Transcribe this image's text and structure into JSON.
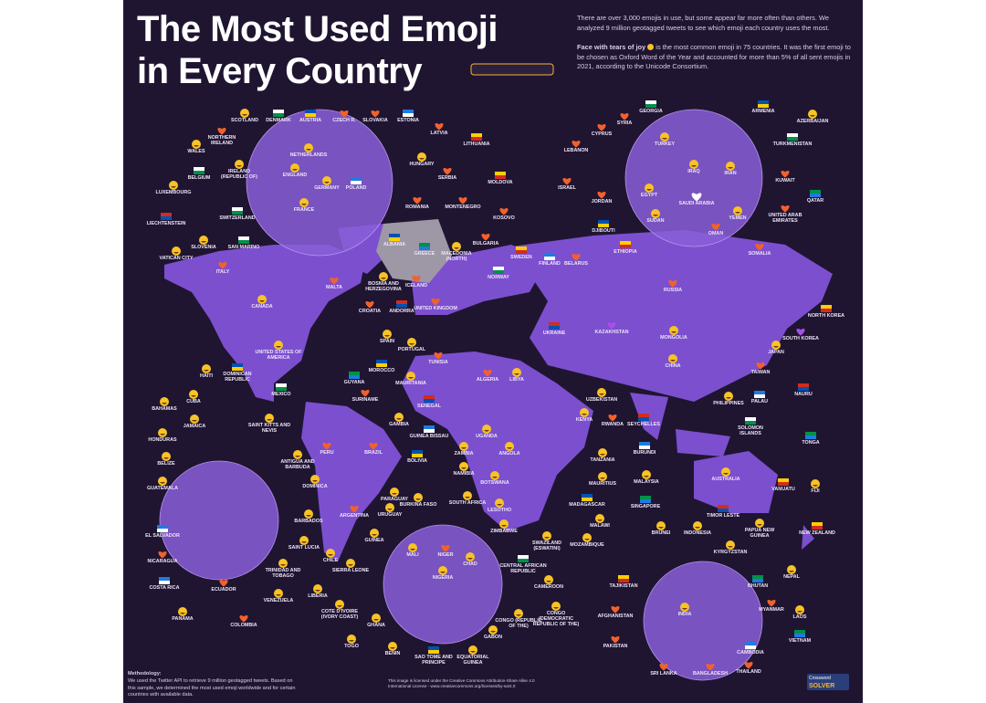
{
  "header": {
    "title_line1": "The Most Used Emoji",
    "title_line2": "in Every Country",
    "intro": "There are over 3,000 emojis in use, but some appear far more often than others. We analyzed 9 million geotagged tweets to see which emoji each country uses the most.",
    "highlight": "Face with tears of joy",
    "highlight_text": "is the most common emoji in 75 countries. It was the first emoji to be chosen as Oxford Word of the Year and accounted for more than 5% of all sent emojis in 2021, according to the Unicode Consortium."
  },
  "countries": [
    "SCOTLAND",
    "DENMARK",
    "AUSTRIA",
    "CZECH R.",
    "SLOVAKIA",
    "ESTONIA",
    "NORTHERN IRELAND",
    "LATVIA",
    "WALES",
    "NETHERLANDS",
    "LITHUANIA",
    "ENGLAND",
    "IRELAND (REPUBLIC OF)",
    "BELGIUM",
    "HUNGARY",
    "SERBIA",
    "MOLDOVA",
    "POLAND",
    "GERMANY",
    "LUXEMBOURG",
    "FRANCE",
    "ROMANIA",
    "MONTENEGRO",
    "KOSOVO",
    "LIECHTENSTEIN",
    "SWITZERLAND",
    "ALBANIA",
    "GREECE",
    "MACEDONIA (NORTH)",
    "BULGARIA",
    "SLOVENIA",
    "SAN MARINO",
    "VATICAN CITY",
    "ITALY",
    "SWEDEN",
    "FINLAND",
    "BELARUS",
    "NORWAY",
    "MALTA",
    "BOSNIA AND HERZEGOVINA",
    "ICELAND",
    "CROATIA",
    "ANDORRA",
    "UNITED KINGDOM",
    "CANADA",
    "UNITED STATES OF AMERICA",
    "SPAIN",
    "PORTUGAL",
    "UKRAINE",
    "KAZAKHSTAN",
    "MONGOLIA",
    "RUSSIA",
    "NORTH KOREA",
    "SOUTH KOREA",
    "JAPAN",
    "TUNISIA",
    "MOROCCO",
    "ALGERIA",
    "LIBYA",
    "CHINA",
    "TAIWAN",
    "HAITI",
    "DOMINICAN REPUBLIC",
    "GUYANA",
    "MAURITANIA",
    "PALAU",
    "NAURU",
    "MEXICO",
    "SURINAME",
    "UZBEKISTAN",
    "PHILIPPINES",
    "CUBA",
    "SENEGAL",
    "BAHAMAS",
    "JAMAICA",
    "GAMBIA",
    "KENYA",
    "RWANDA",
    "SEYCHELLES",
    "SOLOMON ISLANDS",
    "SAINT KITTS AND NEVIS",
    "TONGA",
    "HONDURAS",
    "GUINEA BISSAU",
    "UGANDA",
    "PERU",
    "BRAZIL",
    "ZAMBIA",
    "ANGOLA",
    "BURUNDI",
    "BELIZE",
    "ANTIGUA AND BARBUDA",
    "BOLIVIA",
    "TANZANIA",
    "NAMIBIA",
    "MAURITIUS",
    "MALAYSIA",
    "AUSTRALIA",
    "GUATEMALA",
    "DOMINICA",
    "PARAGUAY",
    "BOTSWANA",
    "SOUTH AFRICA",
    "LESOTHO",
    "MADAGASCAR",
    "SINGAPORE",
    "VANUATU",
    "FIJI",
    "BURKINA FASO",
    "BARBADOS",
    "ARGENTINA",
    "URUGUAY",
    "ZIMBABWE",
    "MALAWI",
    "TIMOR LESTE",
    "BRUNEI",
    "INDONESIA",
    "PAPUA NEW GUINEA",
    "NEW ZEALAND",
    "EL SALVADOR",
    "SWAZILAND (ESWATINI)",
    "MOZAMBIQUE",
    "GUINEA",
    "SAINT LUCIA",
    "CHILE",
    "KYRGYZSTAN",
    "MALI",
    "NIGER",
    "CHAD",
    "NIGERIA",
    "NICARAGUA",
    "TRINIDAD AND TOBAGO",
    "SIERRA LEONE",
    "CENTRAL AFRICAN REPUBLIC",
    "NEPAL",
    "BHUTAN",
    "TAJIKISTAN",
    "COSTA RICA",
    "ECUADOR",
    "VENEZUELA",
    "LIBERIA",
    "CAMEROON",
    "INDIA",
    "MYANMAR",
    "AFGHANISTAN",
    "LAOS",
    "PANAMA",
    "COLOMBIA",
    "COTE D'IVOIRE (IVORY COAST)",
    "CONGO (REPUBLIC OF THE)",
    "CONGO (DEMOCRATIC REPUBLIC OF THE)",
    "GHANA",
    "GABON",
    "VIETNAM",
    "PAKISTAN",
    "CAMBODIA",
    "TOGO",
    "BENIN",
    "SAO TOME AND PRINCIPE",
    "EQUATORIAL GUINEA",
    "THAILAND",
    "SRI LANKA",
    "BANGLADESH",
    "GEORGIA",
    "ARMENIA",
    "AZERBAIJAN",
    "SYRIA",
    "CYPRUS",
    "TURKEY",
    "TURKMENISTAN",
    "LEBANON",
    "IRAQ",
    "IRAN",
    "KUWAIT",
    "ISRAEL",
    "EGYPT",
    "JORDAN",
    "QATAR",
    "SAUDI ARABIA",
    "SUDAN",
    "YEMEN",
    "UNITED ARAB EMIRATES",
    "DJIBOUTI",
    "OMAN",
    "ETHIOPIA",
    "SOMALIA"
  ],
  "footer": {
    "methodology_title": "Methodology:",
    "methodology_text": "We used the Twitter API to retrieve 9 million geotagged tweets. Based on this sample, we determined the most used emoji worldwide and for certain countries with available data.",
    "license": "This image is licensed under the Creative Commons Attribution-Share Alike 4.0 International License - www.creativecommons.org/licenses/by-sa/4.0",
    "logo_line1": "Crossword",
    "logo_line2": "SOLVER"
  }
}
